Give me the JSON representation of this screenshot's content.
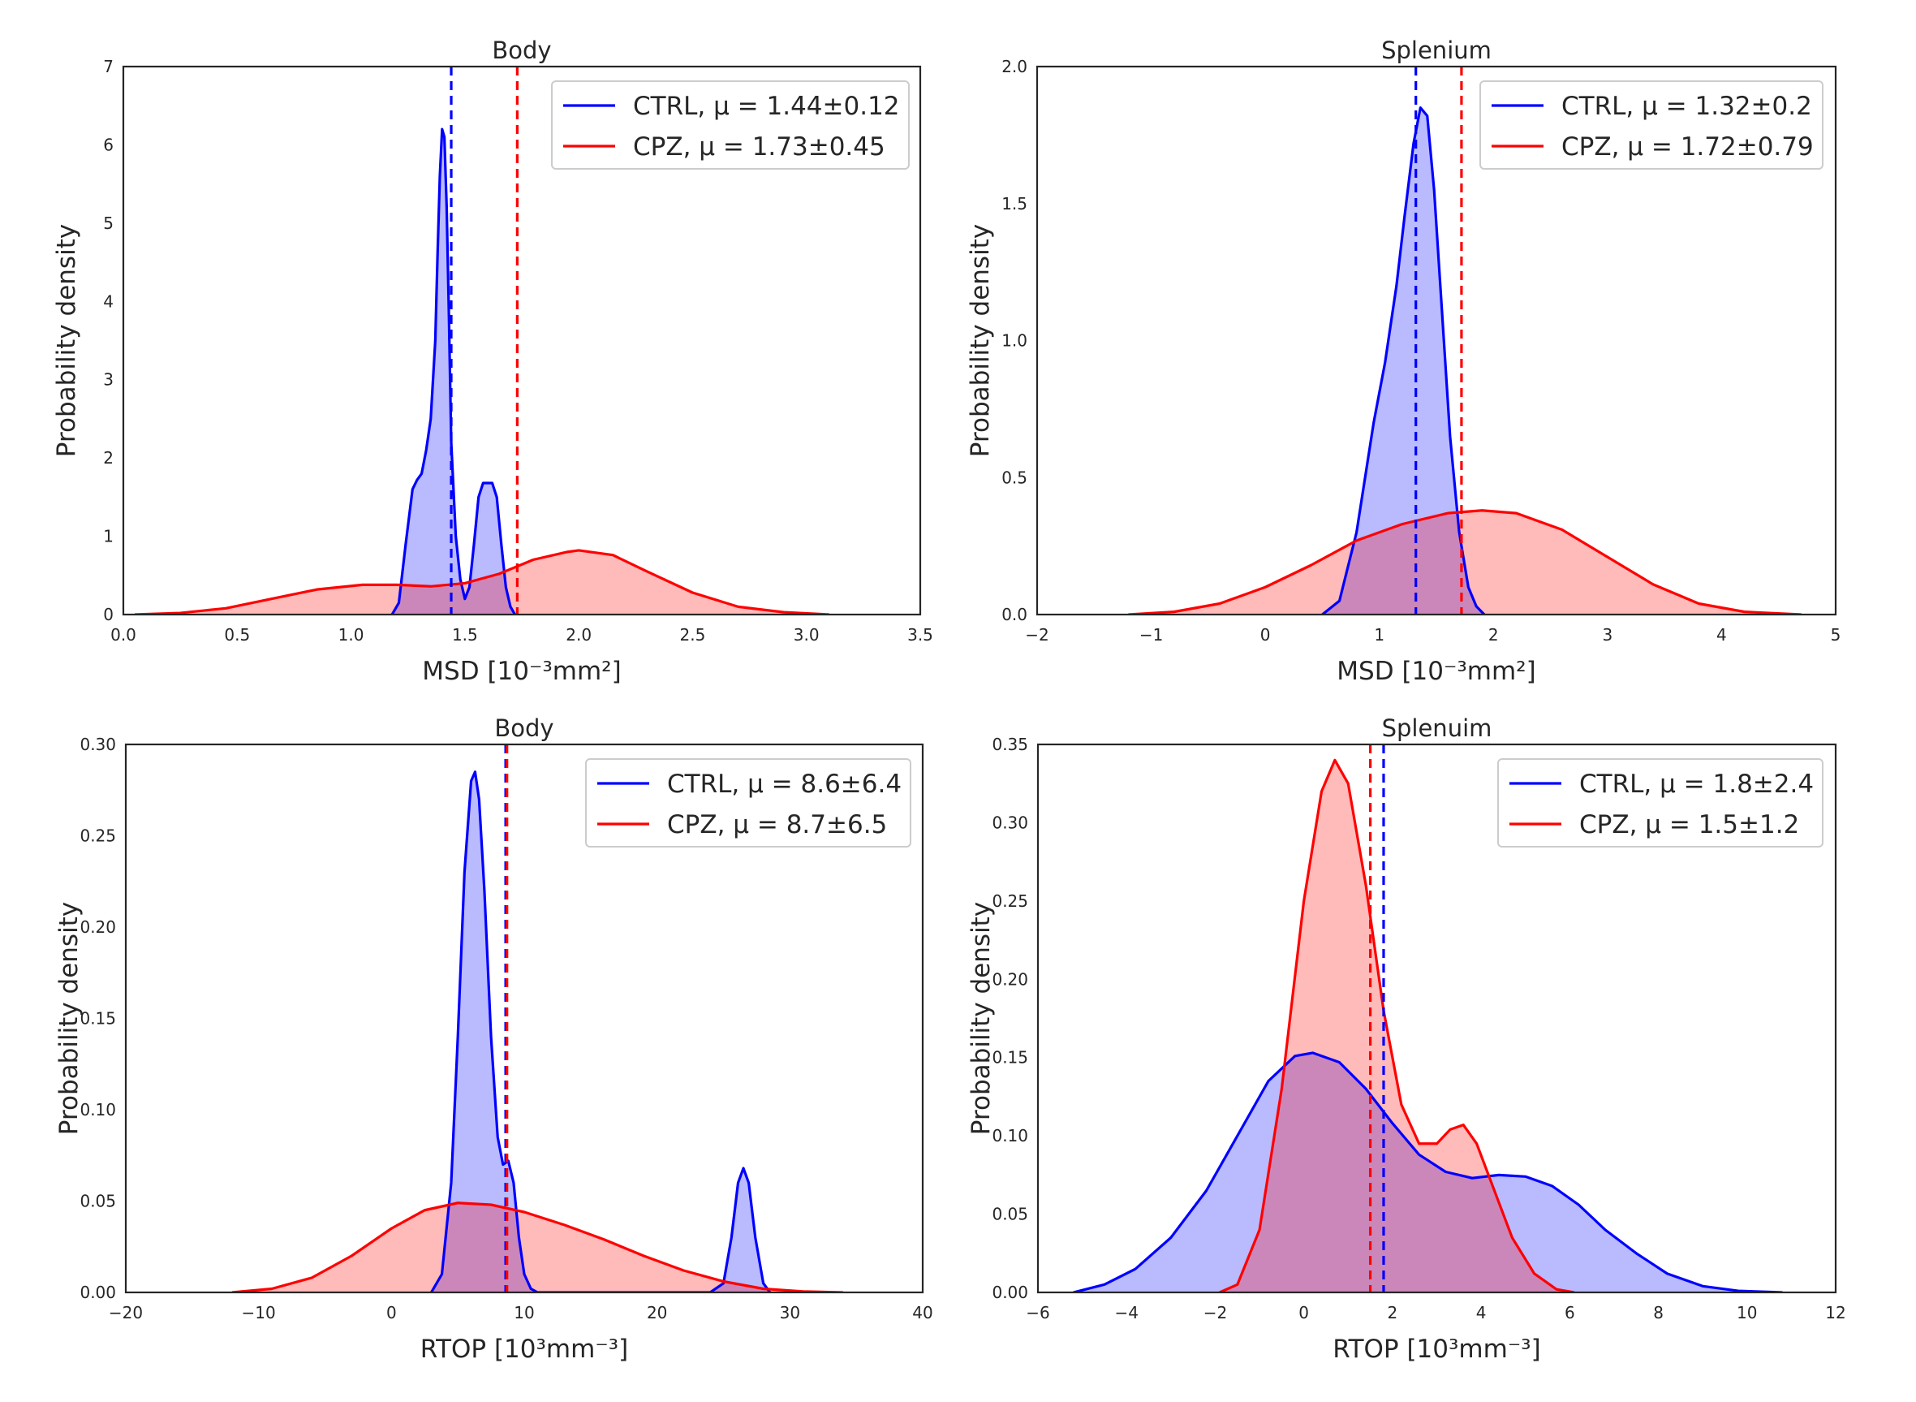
{
  "chart_data": [
    {
      "type": "area",
      "title": "Body",
      "xlabel": "MSD [10⁻³mm²]",
      "ylabel": "Probability density",
      "xlim": [
        0,
        3.5
      ],
      "ylim": [
        0,
        7
      ],
      "xticks": [
        "0.0",
        "0.5",
        "1.0",
        "1.5",
        "2.0",
        "2.5",
        "3.0",
        "3.5"
      ],
      "yticks": [
        "0",
        "1",
        "2",
        "3",
        "4",
        "5",
        "6",
        "7"
      ],
      "legend_position": "upper-right",
      "series": [
        {
          "name": "CTRL",
          "legend": "CTRL, μ = 1.44±0.12",
          "color": "#0000ff",
          "fill": "rgba(0,0,255,0.27)",
          "mean": 1.44,
          "x": [
            1.18,
            1.21,
            1.24,
            1.27,
            1.29,
            1.31,
            1.33,
            1.35,
            1.37,
            1.38,
            1.39,
            1.4,
            1.41,
            1.42,
            1.43,
            1.44,
            1.46,
            1.48,
            1.5,
            1.52,
            1.54,
            1.56,
            1.58,
            1.6,
            1.62,
            1.64,
            1.66,
            1.68,
            1.7,
            1.72
          ],
          "y": [
            0.0,
            0.15,
            0.9,
            1.6,
            1.72,
            1.8,
            2.1,
            2.5,
            3.5,
            4.6,
            5.6,
            6.2,
            6.1,
            5.2,
            3.8,
            2.2,
            1.0,
            0.45,
            0.2,
            0.35,
            0.9,
            1.5,
            1.68,
            1.68,
            1.68,
            1.5,
            0.9,
            0.35,
            0.1,
            0.0
          ]
        },
        {
          "name": "CPZ",
          "legend": "CPZ, μ = 1.73±0.45",
          "color": "#ff0000",
          "fill": "rgba(255,0,0,0.27)",
          "mean": 1.73,
          "x": [
            0.05,
            0.25,
            0.45,
            0.65,
            0.85,
            1.05,
            1.2,
            1.35,
            1.5,
            1.65,
            1.8,
            1.95,
            2.0,
            2.15,
            2.3,
            2.5,
            2.7,
            2.9,
            3.1
          ],
          "y": [
            0.0,
            0.02,
            0.08,
            0.2,
            0.32,
            0.38,
            0.38,
            0.36,
            0.4,
            0.52,
            0.7,
            0.8,
            0.82,
            0.76,
            0.55,
            0.28,
            0.1,
            0.03,
            0.0
          ]
        }
      ]
    },
    {
      "type": "area",
      "title": "Splenium",
      "xlabel": "MSD [10⁻³mm²]",
      "ylabel": "Probability density",
      "xlim": [
        -2,
        5
      ],
      "ylim": [
        0,
        2.0
      ],
      "xticks": [
        "−2",
        "−1",
        "0",
        "1",
        "2",
        "3",
        "4",
        "5"
      ],
      "yticks": [
        "0.0",
        "0.5",
        "1.0",
        "1.5",
        "2.0"
      ],
      "legend_position": "upper-right",
      "series": [
        {
          "name": "CTRL",
          "legend": "CTRL, μ = 1.32±0.2",
          "color": "#0000ff",
          "fill": "rgba(0,0,255,0.27)",
          "mean": 1.32,
          "x": [
            0.5,
            0.65,
            0.8,
            0.95,
            1.05,
            1.15,
            1.22,
            1.3,
            1.36,
            1.42,
            1.48,
            1.55,
            1.62,
            1.7,
            1.78,
            1.85,
            1.92
          ],
          "y": [
            0.0,
            0.05,
            0.3,
            0.7,
            0.92,
            1.2,
            1.45,
            1.72,
            1.85,
            1.82,
            1.55,
            1.1,
            0.65,
            0.3,
            0.1,
            0.03,
            0.0
          ]
        },
        {
          "name": "CPZ",
          "legend": "CPZ, μ = 1.72±0.79",
          "color": "#ff0000",
          "fill": "rgba(255,0,0,0.27)",
          "mean": 1.72,
          "x": [
            -1.2,
            -0.8,
            -0.4,
            0.0,
            0.4,
            0.8,
            1.2,
            1.6,
            1.9,
            2.2,
            2.6,
            3.0,
            3.4,
            3.8,
            4.2,
            4.7
          ],
          "y": [
            0.0,
            0.01,
            0.04,
            0.1,
            0.18,
            0.27,
            0.33,
            0.37,
            0.38,
            0.37,
            0.31,
            0.21,
            0.11,
            0.04,
            0.01,
            0.0
          ]
        }
      ]
    },
    {
      "type": "area",
      "title": "Body",
      "xlabel": "RTOP [10³mm⁻³]",
      "ylabel": "Probability density",
      "xlim": [
        -20,
        40
      ],
      "ylim": [
        0,
        0.3
      ],
      "xticks": [
        "−20",
        "−10",
        "0",
        "10",
        "20",
        "30",
        "40"
      ],
      "yticks": [
        "0.00",
        "0.05",
        "0.10",
        "0.15",
        "0.20",
        "0.25",
        "0.30"
      ],
      "legend_position": "upper-right",
      "series": [
        {
          "name": "CTRL",
          "legend": "CTRL, μ = 8.6±6.4",
          "color": "#0000ff",
          "fill": "rgba(0,0,255,0.27)",
          "mean": 8.6,
          "x": [
            3.0,
            3.8,
            4.5,
            5.0,
            5.5,
            6.0,
            6.3,
            6.6,
            7.0,
            7.5,
            8.0,
            8.4,
            8.8,
            9.2,
            9.6,
            10.0,
            10.5,
            11.0,
            15.0,
            20.0,
            24.0,
            25.0,
            25.6,
            26.1,
            26.5,
            26.9,
            27.4,
            28.0,
            28.5
          ],
          "y": [
            0.0,
            0.01,
            0.06,
            0.14,
            0.23,
            0.28,
            0.285,
            0.27,
            0.22,
            0.14,
            0.085,
            0.07,
            0.072,
            0.06,
            0.03,
            0.01,
            0.002,
            0.0,
            0.0,
            0.0,
            0.0,
            0.005,
            0.03,
            0.06,
            0.068,
            0.06,
            0.03,
            0.005,
            0.0
          ]
        },
        {
          "name": "CPZ",
          "legend": "CPZ, μ = 8.7±6.5",
          "color": "#ff0000",
          "fill": "rgba(255,0,0,0.27)",
          "mean": 8.7,
          "x": [
            -12,
            -9,
            -6,
            -3,
            0,
            2.5,
            5,
            7.5,
            10,
            13,
            16,
            19,
            22,
            25,
            28,
            31,
            34
          ],
          "y": [
            0.0,
            0.002,
            0.008,
            0.02,
            0.035,
            0.045,
            0.049,
            0.048,
            0.044,
            0.037,
            0.029,
            0.02,
            0.012,
            0.006,
            0.002,
            0.0005,
            0.0
          ]
        }
      ]
    },
    {
      "type": "area",
      "title": "Splenuim",
      "xlabel": "RTOP [10³mm⁻³]",
      "ylabel": "Probability density",
      "xlim": [
        -6,
        12
      ],
      "ylim": [
        0,
        0.35
      ],
      "xticks": [
        "−6",
        "−4",
        "−2",
        "0",
        "2",
        "4",
        "6",
        "8",
        "10",
        "12"
      ],
      "yticks": [
        "0.00",
        "0.05",
        "0.10",
        "0.15",
        "0.20",
        "0.25",
        "0.30",
        "0.35"
      ],
      "legend_position": "upper-right",
      "series": [
        {
          "name": "CTRL",
          "legend": "CTRL, μ = 1.8±2.4",
          "color": "#0000ff",
          "fill": "rgba(0,0,255,0.27)",
          "mean": 1.8,
          "x": [
            -5.2,
            -4.5,
            -3.8,
            -3.0,
            -2.2,
            -1.5,
            -0.8,
            -0.2,
            0.2,
            0.8,
            1.4,
            2.0,
            2.6,
            3.2,
            3.8,
            4.4,
            5.0,
            5.6,
            6.2,
            6.8,
            7.5,
            8.2,
            9.0,
            9.8,
            10.8
          ],
          "y": [
            0.0,
            0.005,
            0.015,
            0.035,
            0.065,
            0.1,
            0.135,
            0.151,
            0.153,
            0.147,
            0.13,
            0.108,
            0.088,
            0.077,
            0.073,
            0.075,
            0.074,
            0.068,
            0.056,
            0.04,
            0.025,
            0.012,
            0.004,
            0.001,
            0.0
          ]
        },
        {
          "name": "CPZ",
          "legend": "CPZ, μ = 1.5±1.2",
          "color": "#ff0000",
          "fill": "rgba(255,0,0,0.27)",
          "mean": 1.5,
          "x": [
            -1.9,
            -1.5,
            -1.0,
            -0.5,
            0.0,
            0.4,
            0.7,
            1.0,
            1.4,
            1.8,
            2.2,
            2.6,
            3.0,
            3.3,
            3.6,
            3.9,
            4.3,
            4.7,
            5.2,
            5.7,
            6.1
          ],
          "y": [
            0.0,
            0.005,
            0.04,
            0.13,
            0.25,
            0.32,
            0.34,
            0.325,
            0.26,
            0.18,
            0.12,
            0.095,
            0.095,
            0.104,
            0.107,
            0.095,
            0.065,
            0.035,
            0.012,
            0.002,
            0.0
          ]
        }
      ]
    }
  ]
}
